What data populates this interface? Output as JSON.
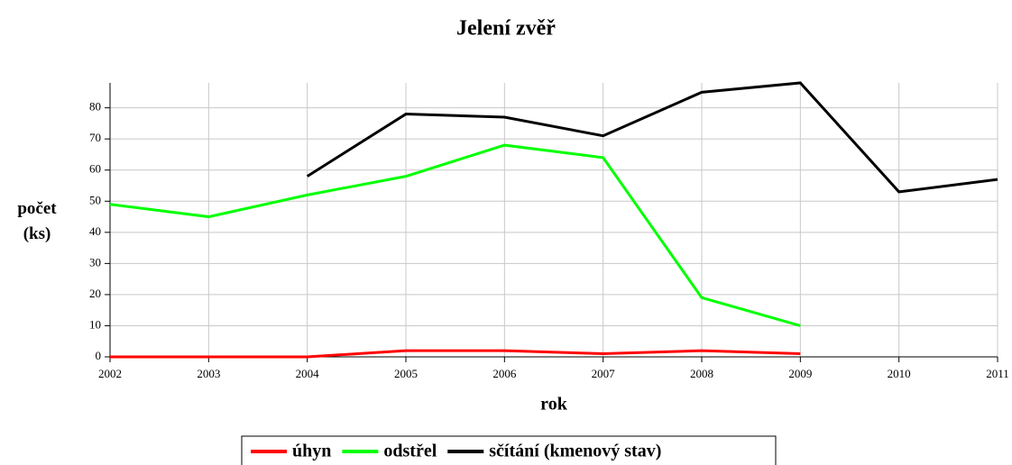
{
  "chart_data": {
    "type": "line",
    "title": "Jelení zvěř",
    "xlabel": "rok",
    "ylabel": "počet (ks)",
    "x": [
      2002,
      2003,
      2004,
      2005,
      2006,
      2007,
      2008,
      2009,
      2010,
      2011
    ],
    "xlim": [
      2002,
      2011
    ],
    "xticks": [
      2002,
      2003,
      2004,
      2005,
      2006,
      2007,
      2008,
      2009,
      2010,
      2011
    ],
    "ylim": [
      0,
      88
    ],
    "yticks": [
      0,
      10,
      20,
      30,
      40,
      50,
      60,
      70,
      80
    ],
    "grid": true,
    "legend": "bottom",
    "series": [
      {
        "name": "úhyn",
        "color": "#ff0000",
        "values": [
          0,
          0,
          0,
          2,
          2,
          1,
          2,
          1,
          null,
          null
        ]
      },
      {
        "name": "odstřel",
        "color": "#00ff00",
        "values": [
          49,
          45,
          52,
          58,
          68,
          64,
          19,
          10,
          null,
          null
        ]
      },
      {
        "name": "sčítání (kmenový stav)",
        "color": "#000000",
        "values": [
          null,
          null,
          58,
          78,
          77,
          71,
          85,
          88,
          53,
          57
        ]
      }
    ]
  }
}
